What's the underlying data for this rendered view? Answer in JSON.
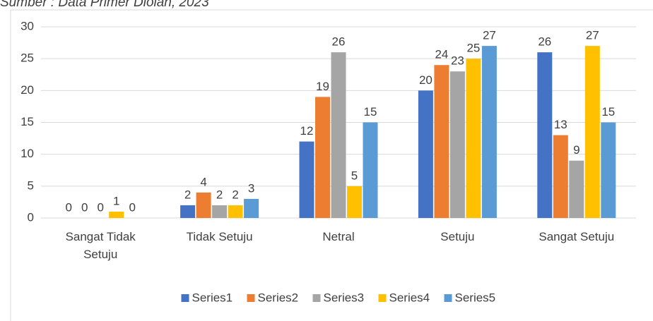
{
  "chart_data": {
    "type": "bar",
    "caption": "Sumber : Data Primer Diolah, 2023",
    "categories": [
      "Sangat Tidak Setuju",
      "Tidak Setuju",
      "Netral",
      "Setuju",
      "Sangat Setuju"
    ],
    "series": [
      {
        "name": "Series1",
        "color": "#4472c4",
        "values": [
          0,
          2,
          12,
          20,
          26
        ]
      },
      {
        "name": "Series2",
        "color": "#ed7d31",
        "values": [
          0,
          4,
          19,
          24,
          13
        ]
      },
      {
        "name": "Series3",
        "color": "#a5a5a5",
        "values": [
          0,
          2,
          26,
          23,
          9
        ]
      },
      {
        "name": "Series4",
        "color": "#ffc000",
        "values": [
          1,
          2,
          5,
          25,
          27
        ]
      },
      {
        "name": "Series5",
        "color": "#5b9bd5",
        "values": [
          0,
          3,
          15,
          27,
          15
        ]
      }
    ],
    "ylim": [
      0,
      30
    ],
    "yticks": [
      0,
      5,
      10,
      15,
      20,
      25,
      30
    ],
    "grid": true,
    "legend": "bottom"
  }
}
